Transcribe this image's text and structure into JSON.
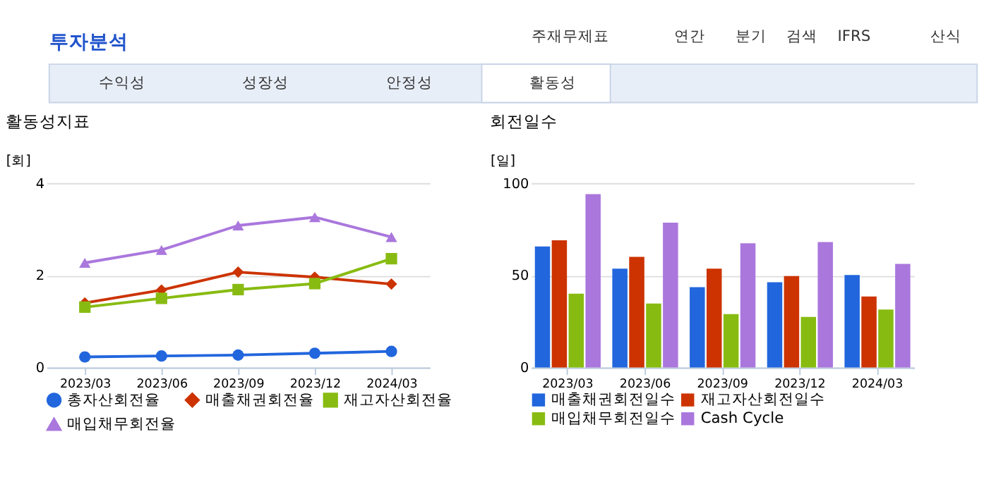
{
  "chart_data": [
    {
      "type": "other",
      "title": "투자분석",
      "annotations": [
        "주재무제표",
        "연간",
        "분기",
        "검색",
        "IFRS",
        "산식",
        "수익성",
        "성장성",
        "안정성",
        "활동성"
      ]
    },
    {
      "type": "line",
      "title": "활동성지표",
      "ylabel": "[회]",
      "categories": [
        "2023/03",
        "2023/06",
        "2023/09",
        "2023/12",
        "2024/03"
      ],
      "ylim": [
        0,
        4
      ],
      "yticks": [
        0,
        2,
        4
      ],
      "grid": "y",
      "legend": "bottom",
      "line_style": "solid",
      "series": [
        {
          "name": "총자산회전율",
          "color": "#2266dd",
          "marker": "circle",
          "values": [
            0.23,
            0.25,
            0.27,
            0.31,
            0.35
          ]
        },
        {
          "name": "매출채권회전율",
          "color": "#cc3300",
          "marker": "diamond",
          "values": [
            1.4,
            1.68,
            2.07,
            1.96,
            1.81
          ]
        },
        {
          "name": "재고자산회전율",
          "color": "#88bb11",
          "marker": "square",
          "values": [
            1.31,
            1.5,
            1.69,
            1.82,
            2.36
          ]
        },
        {
          "name": "매입채무회전율",
          "color": "#aa77dd",
          "marker": "triangle",
          "values": [
            2.27,
            2.55,
            3.08,
            3.26,
            2.83
          ]
        }
      ]
    },
    {
      "type": "bar",
      "title": "회전일수",
      "ylabel": "[일]",
      "categories": [
        "2023/03",
        "2023/06",
        "2023/09",
        "2023/12",
        "2024/03"
      ],
      "ylim": [
        0,
        100
      ],
      "yticks": [
        0,
        50,
        100
      ],
      "grid": "y",
      "legend": "bottom",
      "series": [
        {
          "name": "매출채권회전일수",
          "color": "#2266dd",
          "values": [
            65.6,
            53.6,
            43.6,
            46.2,
            50.2
          ]
        },
        {
          "name": "재고자산회전일수",
          "color": "#cc3300",
          "values": [
            69.0,
            60.0,
            53.6,
            49.6,
            38.5
          ]
        },
        {
          "name": "매입채무회전일수",
          "color": "#88bb11",
          "values": [
            40.0,
            34.7,
            29.0,
            27.4,
            31.4
          ]
        },
        {
          "name": "Cash Cycle",
          "color": "#aa77dd",
          "values": [
            94.0,
            78.5,
            67.4,
            68.0,
            56.2
          ]
        }
      ]
    }
  ]
}
